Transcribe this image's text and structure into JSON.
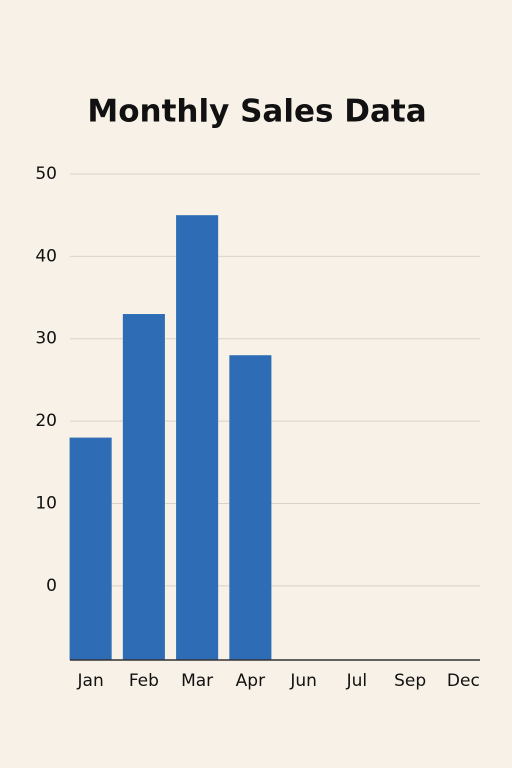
{
  "chart_data": {
    "type": "bar",
    "title": "Monthly Sales Data",
    "categories": [
      "Jan",
      "Feb",
      "Mar",
      "Apr",
      "Jun",
      "Jul",
      "Sep",
      "Dec"
    ],
    "values": [
      18,
      33,
      45,
      28,
      null,
      null,
      null,
      null
    ],
    "color": "#2e6db5",
    "ylim": [
      -9,
      50
    ],
    "yticks": [
      0,
      10,
      20,
      30,
      40,
      50
    ],
    "grid": true
  }
}
